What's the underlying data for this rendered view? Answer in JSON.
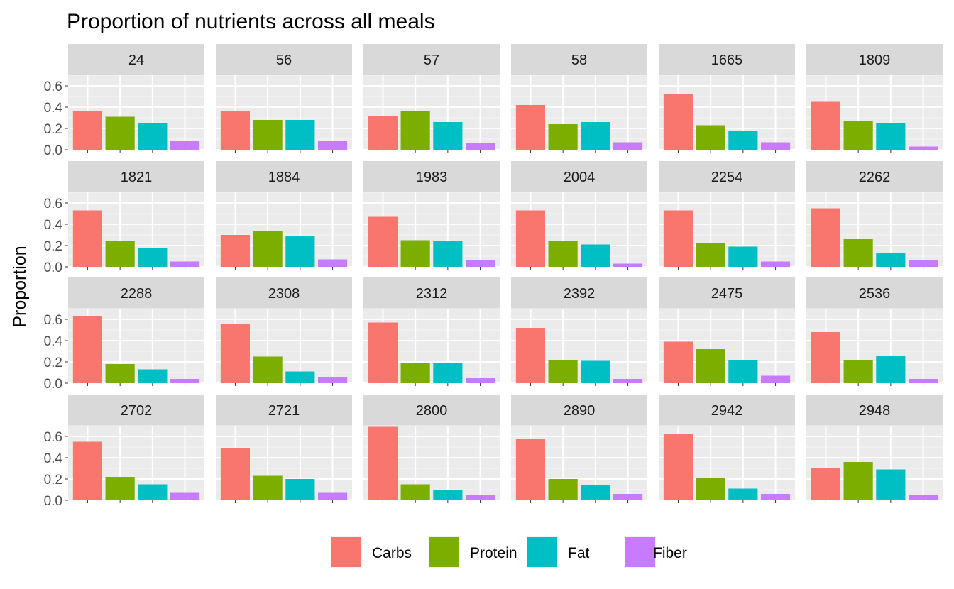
{
  "chart_data": {
    "type": "bar",
    "title": "Proportion of nutrients across all meals",
    "xlabel": "",
    "ylabel": "Proportion",
    "ylim": [
      0,
      0.7
    ],
    "y_ticks": [
      "0.0",
      "0.2",
      "0.4",
      "0.6"
    ],
    "categories": [
      "Carbs",
      "Protein",
      "Fat",
      "Fiber"
    ],
    "colors": {
      "Carbs": "#F8766D",
      "Protein": "#7CAE00",
      "Fat": "#00BFC4",
      "Fiber": "#C77CFF"
    },
    "grid": true,
    "legend": {
      "position": "bottom",
      "entries": [
        "Carbs",
        "Protein",
        "Fat",
        "Fiber"
      ]
    },
    "layout": "facet_wrap 4x6",
    "panels": [
      {
        "label": "24",
        "values": [
          0.36,
          0.31,
          0.25,
          0.08
        ]
      },
      {
        "label": "56",
        "values": [
          0.36,
          0.28,
          0.28,
          0.08
        ]
      },
      {
        "label": "57",
        "values": [
          0.32,
          0.36,
          0.26,
          0.06
        ]
      },
      {
        "label": "58",
        "values": [
          0.42,
          0.24,
          0.26,
          0.07
        ]
      },
      {
        "label": "1665",
        "values": [
          0.52,
          0.23,
          0.18,
          0.07
        ]
      },
      {
        "label": "1809",
        "values": [
          0.45,
          0.27,
          0.25,
          0.03
        ]
      },
      {
        "label": "1821",
        "values": [
          0.53,
          0.24,
          0.18,
          0.05
        ]
      },
      {
        "label": "1884",
        "values": [
          0.3,
          0.34,
          0.29,
          0.07
        ]
      },
      {
        "label": "1983",
        "values": [
          0.47,
          0.25,
          0.24,
          0.06
        ]
      },
      {
        "label": "2004",
        "values": [
          0.53,
          0.24,
          0.21,
          0.03
        ]
      },
      {
        "label": "2254",
        "values": [
          0.53,
          0.22,
          0.19,
          0.05
        ]
      },
      {
        "label": "2262",
        "values": [
          0.55,
          0.26,
          0.13,
          0.06
        ]
      },
      {
        "label": "2288",
        "values": [
          0.63,
          0.18,
          0.13,
          0.04
        ]
      },
      {
        "label": "2308",
        "values": [
          0.56,
          0.25,
          0.11,
          0.06
        ]
      },
      {
        "label": "2312",
        "values": [
          0.57,
          0.19,
          0.19,
          0.05
        ]
      },
      {
        "label": "2392",
        "values": [
          0.52,
          0.22,
          0.21,
          0.04
        ]
      },
      {
        "label": "2475",
        "values": [
          0.39,
          0.32,
          0.22,
          0.07
        ]
      },
      {
        "label": "2536",
        "values": [
          0.48,
          0.22,
          0.26,
          0.04
        ]
      },
      {
        "label": "2702",
        "values": [
          0.55,
          0.22,
          0.15,
          0.07
        ]
      },
      {
        "label": "2721",
        "values": [
          0.49,
          0.23,
          0.2,
          0.07
        ]
      },
      {
        "label": "2800",
        "values": [
          0.69,
          0.15,
          0.1,
          0.05
        ]
      },
      {
        "label": "2890",
        "values": [
          0.58,
          0.2,
          0.14,
          0.06
        ]
      },
      {
        "label": "2942",
        "values": [
          0.62,
          0.21,
          0.11,
          0.06
        ]
      },
      {
        "label": "2948",
        "values": [
          0.3,
          0.36,
          0.29,
          0.05
        ]
      }
    ]
  }
}
